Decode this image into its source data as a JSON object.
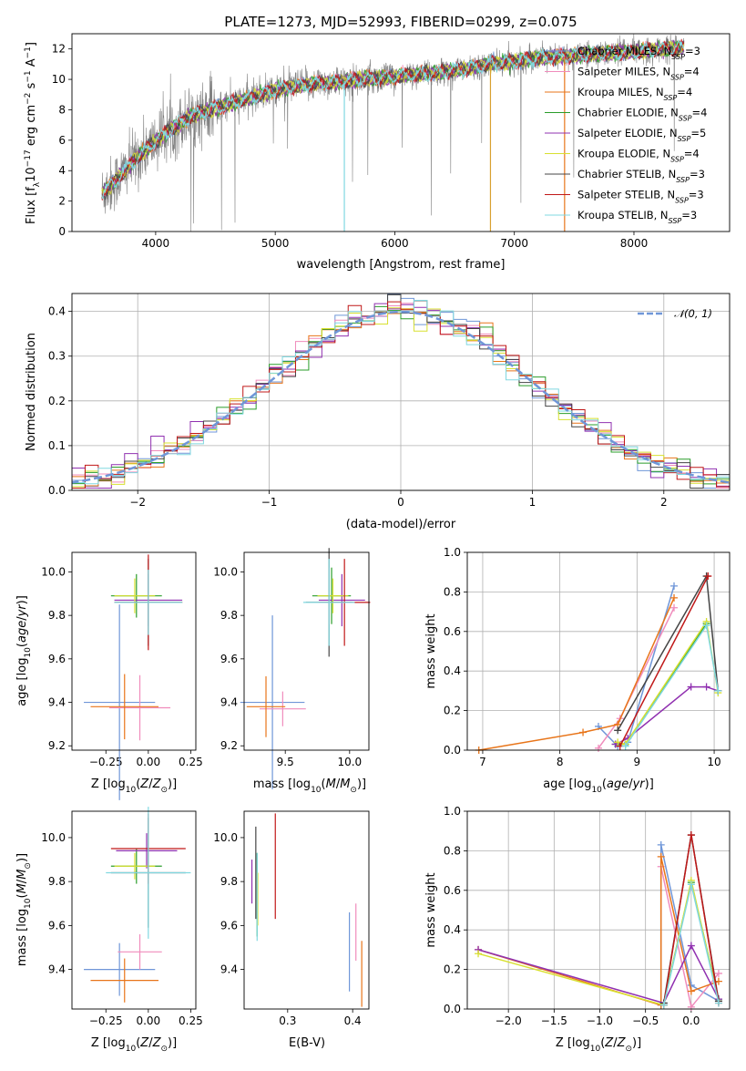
{
  "title": "PLATE=1273, MJD=52993, FIBERID=0299, z=0.075",
  "chart_data": [
    {
      "id": "spectrum",
      "type": "line",
      "xlabel": "wavelength [Angstrom, rest frame]",
      "ylabel": "Flux [f_λ 10^-17 erg cm^-2 s^-1 A^-1]",
      "xlim": [
        3300,
        8800
      ],
      "ylim": [
        0,
        13
      ],
      "xticks": [
        4000,
        5000,
        6000,
        7000,
        8000
      ],
      "yticks": [
        0,
        2,
        4,
        6,
        8,
        10,
        12
      ],
      "grid": false,
      "legend_placement": "right",
      "series": [
        {
          "name": "Chabrier MILES, N_SSP=3",
          "color": "#6f96d8"
        },
        {
          "name": "Salpeter MILES, N_SSP=4",
          "color": "#f08cbc"
        },
        {
          "name": "Kroupa MILES, N_SSP=4",
          "color": "#e8751a"
        },
        {
          "name": "Chabrier ELODIE, N_SSP=4",
          "color": "#2a9d2a"
        },
        {
          "name": "Salpeter ELODIE, N_SSP=5",
          "color": "#9030b0"
        },
        {
          "name": "Kroupa ELODIE, N_SSP=4",
          "color": "#d8e030"
        },
        {
          "name": "Chabrier STELIB, N_SSP=3",
          "color": "#444444"
        },
        {
          "name": "Salpeter STELIB, N_SSP=3",
          "color": "#c01818"
        },
        {
          "name": "Kroupa STELIB, N_SSP=3",
          "color": "#80d8e0"
        }
      ],
      "data_color": "#808080",
      "continuum": {
        "x": [
          3550,
          3650,
          3800,
          3950,
          4100,
          4300,
          4500,
          4800,
          5000,
          5300,
          5600,
          6000,
          6300,
          6600,
          6800,
          7000,
          7200,
          7400,
          7700,
          8000,
          8300,
          8400
        ],
        "y": [
          2.5,
          3.2,
          4.5,
          5.6,
          6.6,
          7.6,
          8.1,
          8.8,
          9.3,
          9.7,
          9.9,
          10.2,
          10.4,
          10.7,
          11.0,
          11.2,
          11.4,
          11.5,
          11.7,
          11.8,
          12.0,
          12.1
        ]
      }
    },
    {
      "id": "residuals",
      "type": "line",
      "xlabel": "(data-model)/error",
      "ylabel": "Normed distribution",
      "xlim": [
        -2.5,
        2.5
      ],
      "ylim": [
        0,
        0.44
      ],
      "xticks": [
        -2,
        -1,
        0,
        1,
        2
      ],
      "yticks": [
        0.0,
        0.1,
        0.2,
        0.3,
        0.4
      ],
      "grid": true,
      "legend_placement": "top-right",
      "legend": [
        "𝒩(0, 1)"
      ],
      "gaussian": {
        "mean": 0,
        "sigma": 1,
        "color": "#6f96d8"
      },
      "histogram_bin_width": 0.1
    },
    {
      "id": "age-vs-Z",
      "type": "scatter",
      "xlabel": "Z [log10(Z/Z⊙)]",
      "ylabel": "age  [log10(age/yr)]",
      "xlim": [
        -0.45,
        0.28
      ],
      "ylim": [
        9.18,
        10.09
      ],
      "xticks": [
        -0.25,
        0.0,
        0.25
      ],
      "xticklabels": [
        "−0.25",
        "0.00",
        "0.25"
      ],
      "yticks": [
        9.2,
        9.4,
        9.6,
        9.8,
        10.0
      ],
      "grid": false,
      "points": [
        {
          "x": -0.17,
          "xe": 0.21,
          "y": 9.4,
          "ye": 0.45,
          "color": "#6f96d8"
        },
        {
          "x": -0.05,
          "xe": 0.18,
          "y": 9.375,
          "ye": 0.15,
          "color": "#f08cbc"
        },
        {
          "x": -0.14,
          "xe": 0.2,
          "y": 9.38,
          "ye": 0.15,
          "color": "#e8751a"
        },
        {
          "x": -0.07,
          "xe": 0.15,
          "y": 9.89,
          "ye": 0.1,
          "color": "#2a9d2a"
        },
        {
          "x": 0.0,
          "xe": 0.2,
          "y": 9.87,
          "ye": 0.12,
          "color": "#9030b0"
        },
        {
          "x": -0.08,
          "xe": 0.12,
          "y": 9.89,
          "ye": 0.08,
          "color": "#d8e030"
        },
        {
          "x": 0.0,
          "xe": 0.2,
          "y": 9.86,
          "ye": 0.2,
          "color": "#444444"
        },
        {
          "x": 0.0,
          "xe": 0.2,
          "y": 9.86,
          "ye": 0.22,
          "color": "#c01818"
        },
        {
          "x": 0.0,
          "xe": 0.2,
          "y": 9.86,
          "ye": 0.15,
          "color": "#80d8e0"
        }
      ]
    },
    {
      "id": "age-vs-mass",
      "type": "scatter",
      "xlabel": "mass [log10(M/M⊙)]",
      "ylabel": "",
      "xlim": [
        9.18,
        10.15
      ],
      "ylim": [
        9.18,
        10.09
      ],
      "xticks": [
        9.5,
        10.0
      ],
      "xticklabels": [
        "9.5",
        "10.0"
      ],
      "yticks": [
        9.2,
        9.4,
        9.6,
        9.8,
        10.0
      ],
      "grid": false,
      "points": [
        {
          "x": 9.4,
          "xe": 0.25,
          "y": 9.4,
          "ye": 0.4,
          "color": "#6f96d8"
        },
        {
          "x": 9.48,
          "xe": 0.18,
          "y": 9.37,
          "ye": 0.08,
          "color": "#f08cbc"
        },
        {
          "x": 9.35,
          "xe": 0.15,
          "y": 9.38,
          "ye": 0.14,
          "color": "#e8751a"
        },
        {
          "x": 9.86,
          "xe": 0.15,
          "y": 9.89,
          "ye": 0.13,
          "color": "#2a9d2a"
        },
        {
          "x": 9.94,
          "xe": 0.18,
          "y": 9.87,
          "ye": 0.12,
          "color": "#9030b0"
        },
        {
          "x": 9.87,
          "xe": 0.12,
          "y": 9.89,
          "ye": 0.08,
          "color": "#d8e030"
        },
        {
          "x": 9.84,
          "xe": 0.18,
          "y": 9.86,
          "ye": 0.25,
          "color": "#444444"
        },
        {
          "x": 9.96,
          "xe": 0.2,
          "y": 9.86,
          "ye": 0.2,
          "color": "#c01818"
        },
        {
          "x": 9.84,
          "xe": 0.2,
          "y": 9.86,
          "ye": 0.2,
          "color": "#80d8e0"
        }
      ]
    },
    {
      "id": "massweight-vs-age",
      "type": "line",
      "xlabel": "age  [log10(age/yr)]",
      "ylabel": "mass weight",
      "xlim": [
        6.8,
        10.2
      ],
      "ylim": [
        0,
        1.0
      ],
      "xticks": [
        7,
        8,
        9,
        10
      ],
      "yticks": [
        0.0,
        0.2,
        0.4,
        0.6,
        0.8,
        1.0
      ],
      "grid": true,
      "series": [
        {
          "color": "#6f96d8",
          "x": [
            8.5,
            8.75,
            8.88,
            9.48
          ],
          "y": [
            0.12,
            0.02,
            0.04,
            0.83
          ]
        },
        {
          "color": "#f08cbc",
          "x": [
            8.5,
            8.78,
            9.48
          ],
          "y": [
            0.01,
            0.16,
            0.72
          ]
        },
        {
          "color": "#e8751a",
          "x": [
            6.95,
            8.3,
            8.75,
            9.48
          ],
          "y": [
            0.0,
            0.09,
            0.13,
            0.77
          ]
        },
        {
          "color": "#2a9d2a",
          "x": [
            8.72,
            8.85,
            9.9
          ],
          "y": [
            0.03,
            0.03,
            0.64
          ]
        },
        {
          "color": "#9030b0",
          "x": [
            8.72,
            8.88,
            9.7,
            9.9,
            10.05
          ],
          "y": [
            0.03,
            0.06,
            0.32,
            0.32,
            0.3
          ]
        },
        {
          "color": "#d8e030",
          "x": [
            8.75,
            8.85,
            9.9,
            10.05
          ],
          "y": [
            0.04,
            0.03,
            0.65,
            0.29
          ]
        },
        {
          "color": "#444444",
          "x": [
            8.75,
            9.9,
            10.05
          ],
          "y": [
            0.1,
            0.88,
            0.3
          ]
        },
        {
          "color": "#c01818",
          "x": [
            8.78,
            9.92
          ],
          "y": [
            0.02,
            0.88
          ]
        },
        {
          "color": "#80d8e0",
          "x": [
            8.85,
            9.9,
            10.05
          ],
          "y": [
            0.02,
            0.63,
            0.3
          ]
        }
      ]
    },
    {
      "id": "mass-vs-Z",
      "type": "scatter",
      "xlabel": "Z [log10(Z/Z⊙)]",
      "ylabel": "mass [log10(M/M⊙)]",
      "xlim": [
        -0.45,
        0.28
      ],
      "ylim": [
        9.22,
        10.12
      ],
      "xticks": [
        -0.25,
        0.0,
        0.25
      ],
      "xticklabels": [
        "−0.25",
        "0.00",
        "0.25"
      ],
      "yticks": [
        9.4,
        9.6,
        9.8,
        10.0
      ],
      "grid": false,
      "points": [
        {
          "x": -0.17,
          "xe": 0.21,
          "y": 9.4,
          "ye": 0.12,
          "color": "#6f96d8"
        },
        {
          "x": -0.05,
          "xe": 0.13,
          "y": 9.48,
          "ye": 0.08,
          "color": "#f08cbc"
        },
        {
          "x": -0.14,
          "xe": 0.2,
          "y": 9.35,
          "ye": 0.1,
          "color": "#e8751a"
        },
        {
          "x": -0.07,
          "xe": 0.15,
          "y": 9.87,
          "ye": 0.08,
          "color": "#2a9d2a"
        },
        {
          "x": -0.01,
          "xe": 0.18,
          "y": 9.94,
          "ye": 0.08,
          "color": "#9030b0"
        },
        {
          "x": -0.08,
          "xe": 0.12,
          "y": 9.87,
          "ye": 0.06,
          "color": "#d8e030"
        },
        {
          "x": 0.0,
          "xe": 0.22,
          "y": 9.84,
          "ye": 0.25,
          "color": "#444444"
        },
        {
          "x": 0.0,
          "xe": 0.22,
          "y": 9.95,
          "ye": 0.16,
          "color": "#c01818"
        },
        {
          "x": 0.0,
          "xe": 0.25,
          "y": 9.84,
          "ye": 0.3,
          "color": "#80d8e0"
        }
      ]
    },
    {
      "id": "mass-vs-EBV",
      "type": "scatter",
      "xlabel": "E(B-V)",
      "ylabel": "",
      "xlim": [
        0.233,
        0.425
      ],
      "ylim": [
        9.22,
        10.12
      ],
      "xticks": [
        0.3,
        0.4
      ],
      "xticklabels": [
        "0.3",
        "0.4"
      ],
      "yticks": [
        9.4,
        9.6,
        9.8,
        10.0
      ],
      "grid": false,
      "points": [
        {
          "x": 0.395,
          "y": 9.48,
          "ye": 0.18,
          "color": "#6f96d8"
        },
        {
          "x": 0.405,
          "y": 9.57,
          "ye": 0.13,
          "color": "#f08cbc"
        },
        {
          "x": 0.414,
          "y": 9.38,
          "ye": 0.15,
          "color": "#e8751a"
        },
        {
          "x": 0.253,
          "y": 9.74,
          "ye": 0.19,
          "color": "#2a9d2a"
        },
        {
          "x": 0.245,
          "y": 9.8,
          "ye": 0.1,
          "color": "#9030b0"
        },
        {
          "x": 0.254,
          "y": 9.72,
          "ye": 0.12,
          "color": "#d8e030"
        },
        {
          "x": 0.251,
          "y": 9.84,
          "ye": 0.21,
          "color": "#444444"
        },
        {
          "x": 0.281,
          "y": 9.87,
          "ye": 0.24,
          "color": "#c01818"
        },
        {
          "x": 0.253,
          "y": 9.73,
          "ye": 0.2,
          "color": "#80d8e0"
        }
      ]
    },
    {
      "id": "massweight-vs-Z",
      "type": "line",
      "xlabel": "Z [log10(Z/Z⊙)]",
      "ylabel": "mass weight",
      "xlim": [
        -2.45,
        0.42
      ],
      "ylim": [
        0,
        1.0
      ],
      "xticks": [
        -2.0,
        -1.5,
        -1.0,
        -0.5,
        0.0
      ],
      "xticklabels": [
        "−2.0",
        "−1.5",
        "−1.0",
        "−0.5",
        "0.0"
      ],
      "yticks": [
        0.0,
        0.2,
        0.4,
        0.6,
        0.8,
        1.0
      ],
      "grid": true,
      "series": [
        {
          "color": "#6f96d8",
          "x": [
            -0.33,
            -0.33,
            0.0,
            0.3
          ],
          "y": [
            0.02,
            0.83,
            0.12,
            0.04
          ]
        },
        {
          "color": "#f08cbc",
          "x": [
            -0.33,
            0.0,
            0.3
          ],
          "y": [
            0.72,
            0.01,
            0.18
          ]
        },
        {
          "color": "#e8751a",
          "x": [
            -2.33,
            -0.33,
            -0.33,
            0.0,
            0.3
          ],
          "y": [
            0.3,
            0.02,
            0.77,
            0.09,
            0.14
          ]
        },
        {
          "color": "#2a9d2a",
          "x": [
            -0.3,
            0.0,
            0.3
          ],
          "y": [
            0.03,
            0.64,
            0.05
          ]
        },
        {
          "color": "#9030b0",
          "x": [
            -2.33,
            -0.3,
            0.0,
            0.3
          ],
          "y": [
            0.3,
            0.03,
            0.32,
            0.05
          ]
        },
        {
          "color": "#d8e030",
          "x": [
            -2.33,
            -0.3,
            0.0,
            0.3
          ],
          "y": [
            0.28,
            0.02,
            0.65,
            0.04
          ]
        },
        {
          "color": "#444444",
          "x": [
            -0.3,
            0.0,
            0.3
          ],
          "y": [
            0.03,
            0.88,
            0.04
          ]
        },
        {
          "color": "#c01818",
          "x": [
            -0.3,
            0.0,
            0.3
          ],
          "y": [
            0.02,
            0.88,
            0.03
          ]
        },
        {
          "color": "#80d8e0",
          "x": [
            -0.3,
            0.0,
            0.3
          ],
          "y": [
            0.02,
            0.63,
            0.03
          ]
        }
      ]
    }
  ]
}
